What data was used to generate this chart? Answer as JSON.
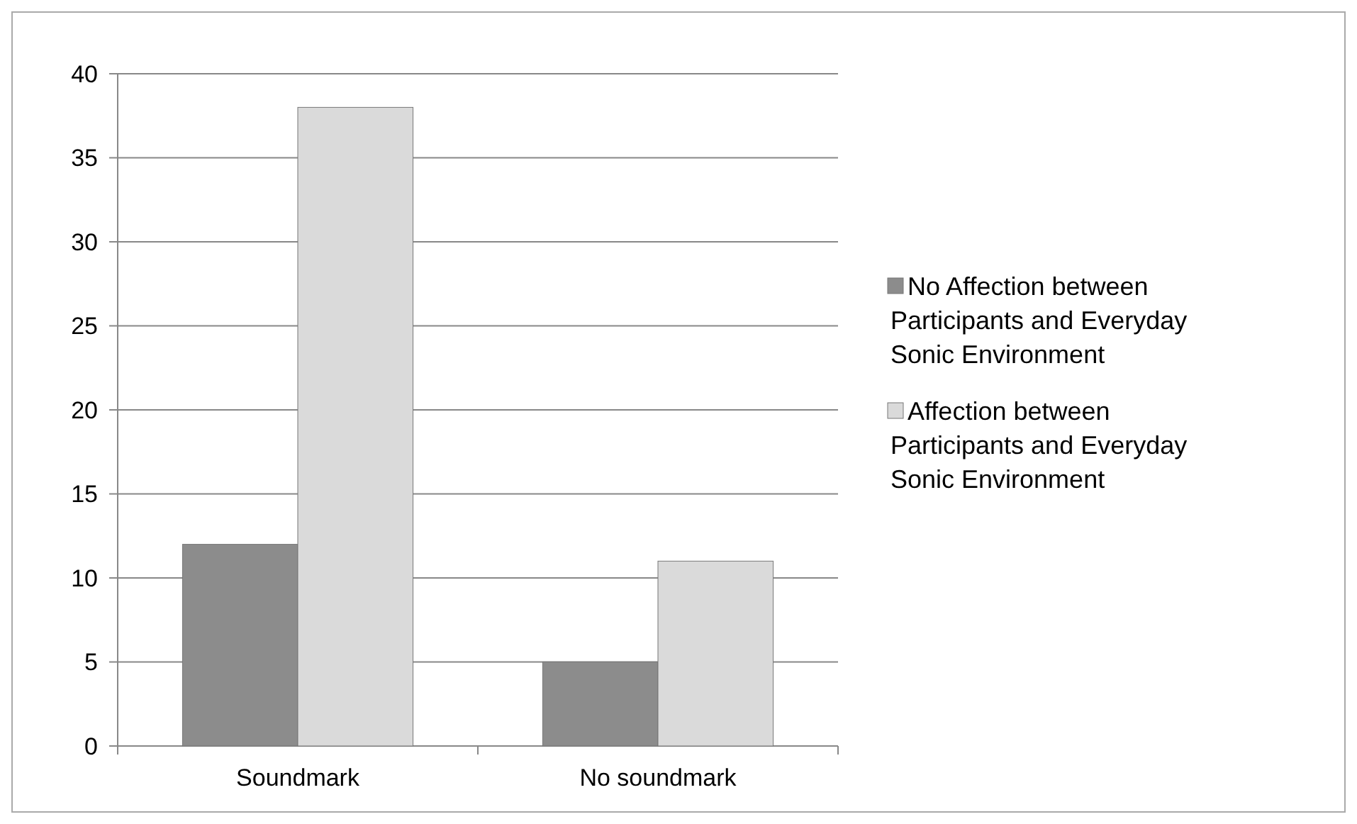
{
  "chart_data": {
    "type": "bar",
    "categories": [
      "Soundmark",
      "No soundmark"
    ],
    "series": [
      {
        "name": "No Affection between Participants and Everyday Sonic Environment",
        "color": "#8c8c8c",
        "values": [
          12,
          5
        ]
      },
      {
        "name": "Affection between Participants and Everyday Sonic Environment",
        "color": "#dadada",
        "values": [
          38,
          11
        ]
      }
    ],
    "ylim": [
      0,
      40
    ],
    "yticks": [
      0,
      5,
      10,
      15,
      20,
      25,
      30,
      35,
      40
    ],
    "grid": "y",
    "legend": "right"
  }
}
